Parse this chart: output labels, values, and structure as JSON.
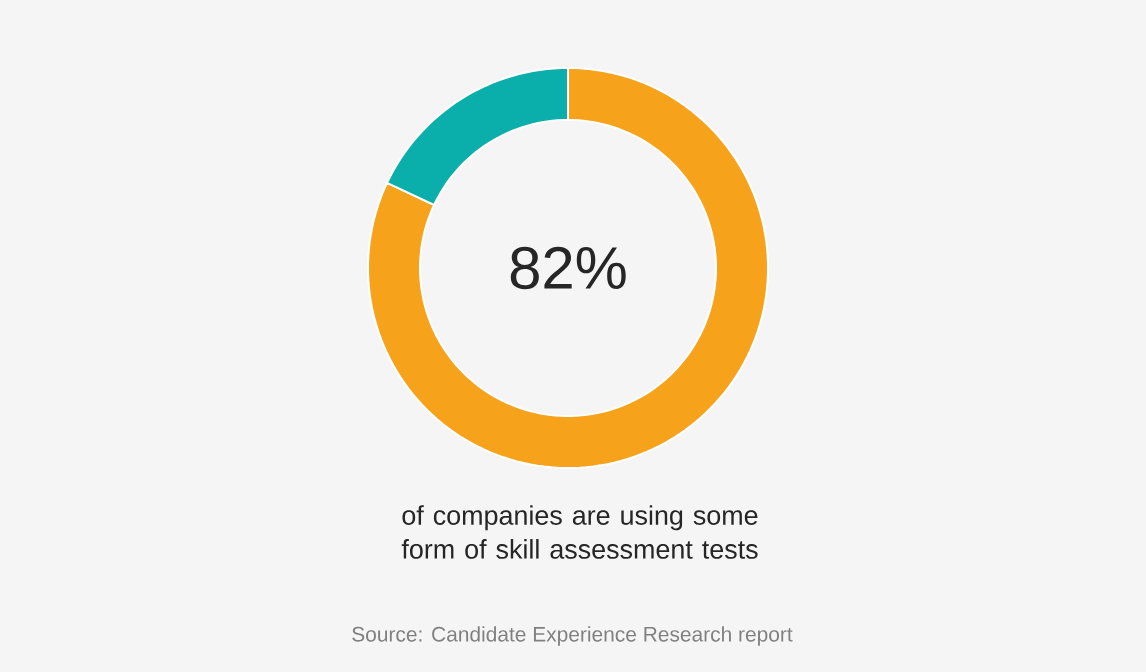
{
  "chart_data": {
    "type": "donut",
    "categories": [
      null,
      null
    ],
    "values": [
      82,
      18
    ],
    "colors": [
      "#f7a21b",
      "#0aaeab"
    ],
    "value_labels": [
      "82%",
      null
    ],
    "annotations": [
      "of companies are using some form of skill assessment tests",
      "Source: Candidate Experience Research report"
    ]
  }
}
